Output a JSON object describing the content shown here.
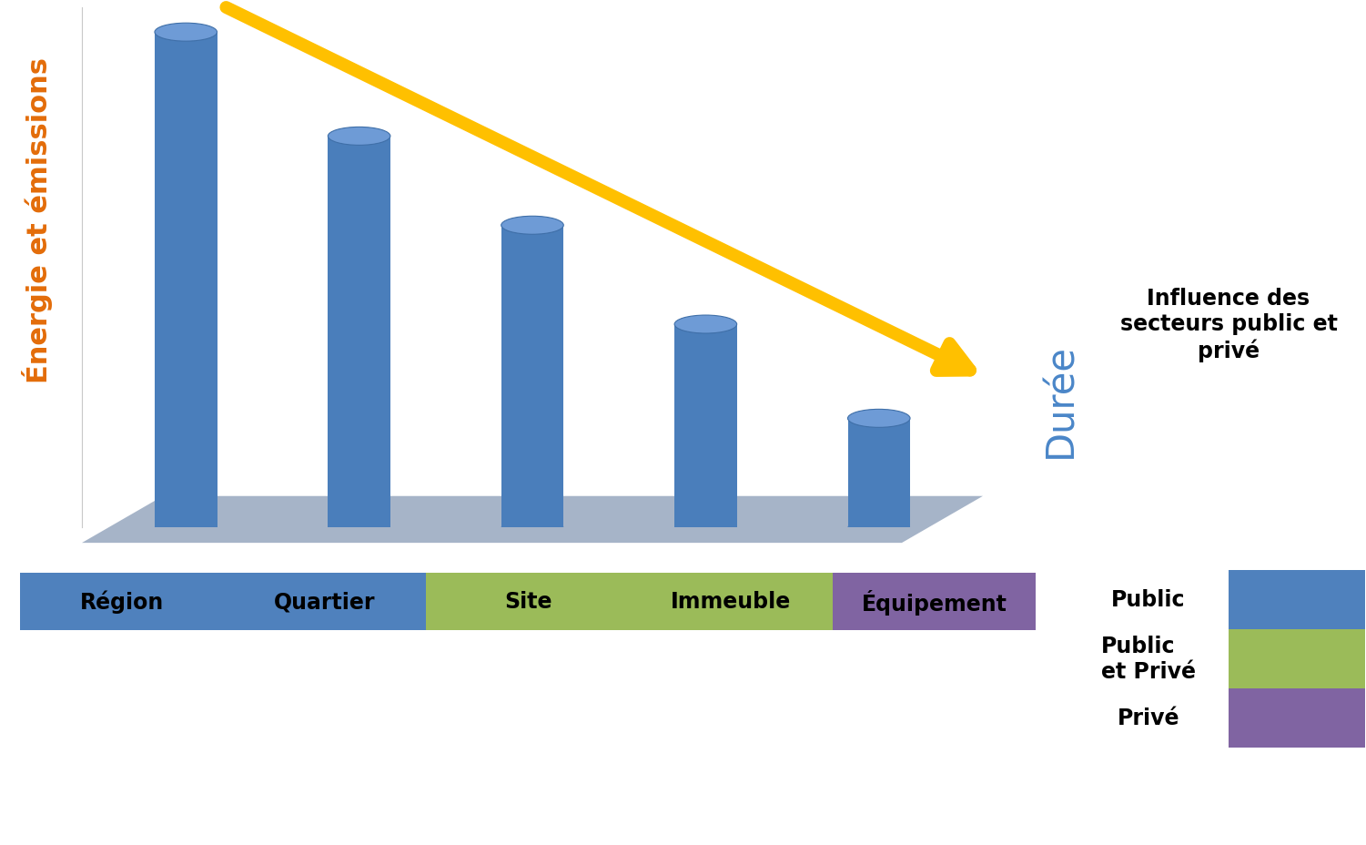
{
  "chart_data": {
    "type": "bar",
    "y_label": "Énergie et émissions",
    "x_label": "Durée",
    "categories": [
      "Région",
      "Quartier",
      "Site",
      "Immeuble",
      "Équipement"
    ],
    "values": [
      100,
      79,
      61,
      41,
      22
    ],
    "color": "#4a7ebb",
    "ylim": [
      0,
      105
    ],
    "tick_labels": false,
    "category_sectors": [
      "Public",
      "Public",
      "Public\net Privé",
      "Public\net Privé",
      "Privé"
    ],
    "sectors": {
      "title": "Influence des\nsecteurs public et\nprivé",
      "series": [
        {
          "name": "Public",
          "color": "#4f81bd"
        },
        {
          "name": "Public\net Privé",
          "color": "#9bbb59"
        },
        {
          "name": "Privé",
          "color": "#8064a2"
        }
      ]
    }
  }
}
